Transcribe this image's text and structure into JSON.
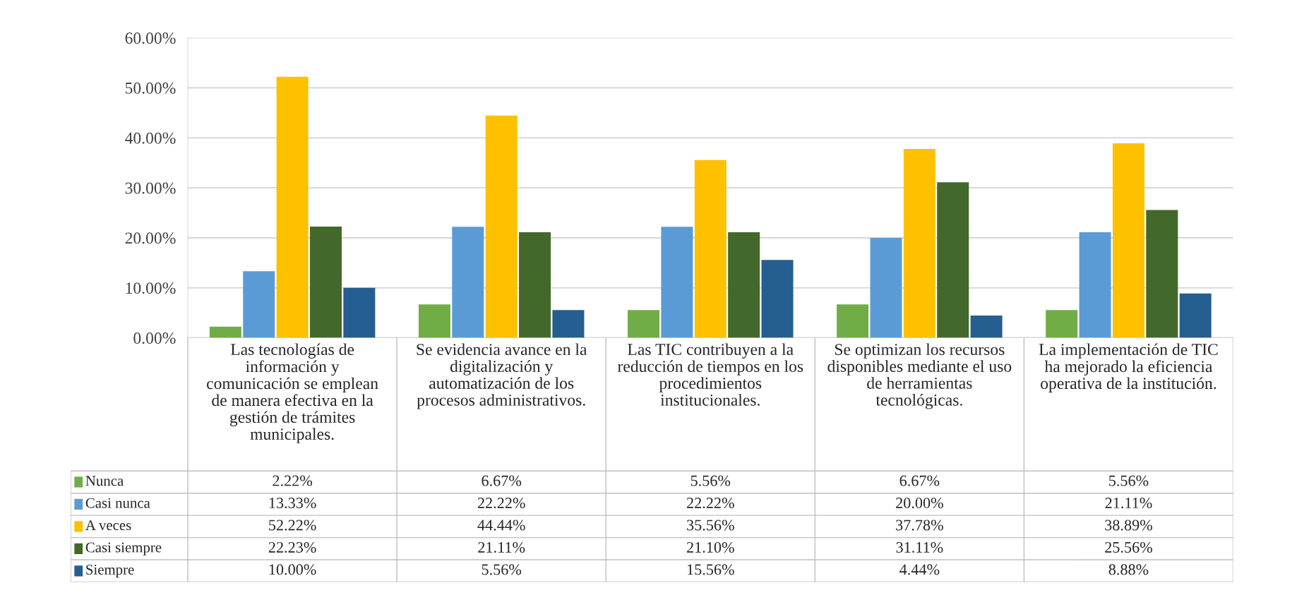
{
  "chart_data": {
    "type": "bar",
    "categories": [
      "Las tecnologías de información y comunicación se emplean de manera efectiva en la gestión de trámites municipales.",
      "Se evidencia avance en la digitalización y automatización de los procesos administrativos.",
      "Las TIC contribuyen a la reducción de tiempos en los procedimientos institucionales.",
      "Se optimizan los recursos disponibles mediante el uso de herramientas tecnológicas.",
      "La implementación de TIC ha mejorado la eficiencia operativa de la institución."
    ],
    "series": [
      {
        "name": "Nunca",
        "color": "#70ad47",
        "values": [
          2.22,
          6.67,
          5.56,
          6.67,
          5.56
        ],
        "value_labels": [
          "2.22%",
          "6.67%",
          "5.56%",
          "6.67%",
          "5.56%"
        ]
      },
      {
        "name": "Casi nunca",
        "color": "#5b9bd5",
        "values": [
          13.33,
          22.22,
          22.22,
          20.0,
          21.11
        ],
        "value_labels": [
          "13.33%",
          "22.22%",
          "22.22%",
          "20.00%",
          "21.11%"
        ]
      },
      {
        "name": "A veces",
        "color": "#ffc000",
        "values": [
          52.22,
          44.44,
          35.56,
          37.78,
          38.89
        ],
        "value_labels": [
          "52.22%",
          "44.44%",
          "35.56%",
          "37.78%",
          "38.89%"
        ]
      },
      {
        "name": "Casi siempre",
        "color": "#43682b",
        "values": [
          22.23,
          21.11,
          21.1,
          31.11,
          25.56
        ],
        "value_labels": [
          "22.23%",
          "21.11%",
          "21.10%",
          "31.11%",
          "25.56%"
        ]
      },
      {
        "name": "Siempre",
        "color": "#255e91",
        "values": [
          10.0,
          5.56,
          15.56,
          4.44,
          8.88
        ],
        "value_labels": [
          "10.00%",
          "5.56%",
          "15.56%",
          "4.44%",
          "8.88%"
        ]
      }
    ],
    "ylim": [
      0,
      60
    ],
    "yticks": [
      {
        "value": 0,
        "label": "0.00%"
      },
      {
        "value": 10,
        "label": "10.00%"
      },
      {
        "value": 20,
        "label": "20.00%"
      },
      {
        "value": 30,
        "label": "30.00%"
      },
      {
        "value": 40,
        "label": "40.00%"
      },
      {
        "value": 50,
        "label": "50.00%"
      },
      {
        "value": 60,
        "label": "60.00%"
      }
    ],
    "grid": "y",
    "legend": "bottom left"
  }
}
